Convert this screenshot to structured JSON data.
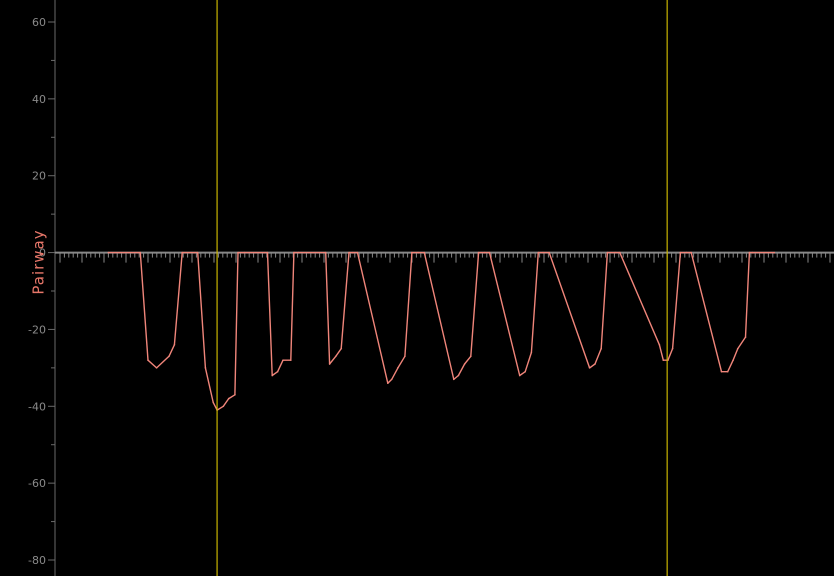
{
  "chart_data": {
    "type": "line",
    "ylabel": "Pairway",
    "ylim": [
      -80,
      60
    ],
    "xlim": [
      0,
      100
    ],
    "y_ticks": [
      {
        "value": 60,
        "label": "60"
      },
      {
        "value": 40,
        "label": "40"
      },
      {
        "value": 20,
        "label": "20"
      },
      {
        "value": 0,
        "label": "0"
      },
      {
        "value": -20,
        "label": "-20"
      },
      {
        "value": -40,
        "label": "-40"
      },
      {
        "value": -60,
        "label": "-60"
      },
      {
        "value": -80,
        "label": "-80"
      }
    ],
    "colors": {
      "background": "#000000",
      "trace": "#f0857a",
      "cursor": "#c8b400",
      "baseline": "#888888",
      "axis": "#6a6a6a"
    },
    "cursors_x": [
      20.5,
      78.5
    ],
    "series": [
      {
        "x": [
          6.5,
          10.6,
          11.6,
          12.7,
          14.3,
          15.0,
          16.0,
          18.0,
          19.0,
          20.0,
          20.5,
          21.3,
          22.0,
          22.8,
          23.2,
          24.0,
          27.0,
          27.6,
          28.3,
          29.0,
          30.0,
          30.4,
          31.0,
          34.5,
          35.0,
          35.8,
          36.5,
          37.5,
          38.0,
          38.6,
          42.5,
          43.0,
          43.8,
          44.7,
          45.6,
          46.4,
          47.2,
          51.0,
          51.6,
          52.4,
          53.2,
          54.2,
          55.0,
          55.6,
          59.5,
          60.2,
          61.0,
          61.9,
          62.5,
          63.3,
          68.5,
          69.2,
          70.0,
          70.8,
          71.8,
          72.4,
          77.5,
          78.0,
          78.6,
          79.2,
          80.2,
          81.0,
          81.6,
          85.5,
          86.3,
          87.0,
          87.6,
          88.6,
          89.1,
          89.5,
          92.3
        ],
        "y": [
          0,
          0,
          -28,
          -30,
          -27,
          -24,
          0,
          0,
          -30,
          -39,
          -41,
          -40,
          -38,
          -37,
          0,
          0,
          0,
          -32,
          -31,
          -28,
          -28,
          0,
          0,
          0,
          -29,
          -27,
          -25,
          0,
          0,
          0,
          -34,
          -33,
          -30,
          -27,
          0,
          0,
          0,
          -33,
          -32,
          -29,
          -27,
          0,
          0,
          0,
          -32,
          -31,
          -26,
          0,
          0,
          0,
          -30,
          -29,
          -25,
          0,
          0,
          0,
          -24,
          -28,
          -28,
          -25,
          0,
          0,
          0,
          -31,
          -31,
          -28,
          -25,
          -22,
          0,
          0,
          0
        ]
      }
    ]
  }
}
